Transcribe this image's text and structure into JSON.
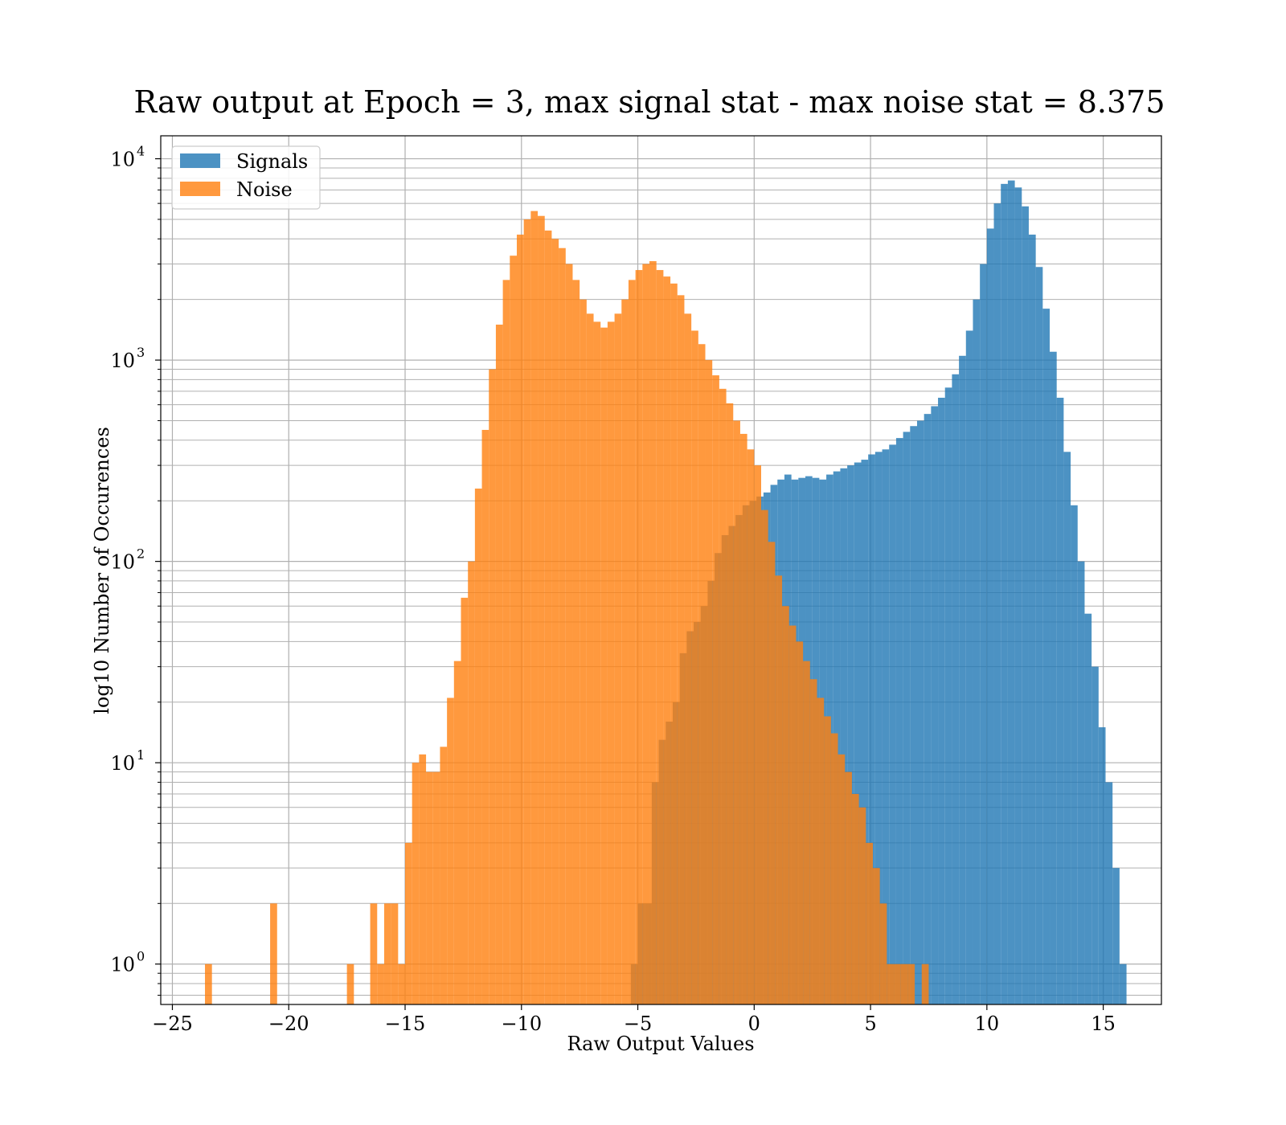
{
  "chart_data": {
    "type": "bar",
    "title": "Raw output at Epoch = 3, max signal stat - max noise stat = 8.375",
    "xlabel": "Raw Output Values",
    "ylabel": "log10 Number of Occurences",
    "yscale": "log",
    "xlim": [
      -25.5,
      17.5
    ],
    "ylim": [
      0.63,
      13000
    ],
    "grid": true,
    "legend_position": "top-left",
    "x_ticks": [
      {
        "value": -25,
        "label": "−25"
      },
      {
        "value": -20,
        "label": "−20"
      },
      {
        "value": -15,
        "label": "−15"
      },
      {
        "value": -10,
        "label": "−10"
      },
      {
        "value": -5,
        "label": "−5"
      },
      {
        "value": 0,
        "label": "0"
      },
      {
        "value": 5,
        "label": "5"
      },
      {
        "value": 10,
        "label": "10"
      },
      {
        "value": 15,
        "label": "15"
      }
    ],
    "y_ticks": [
      {
        "value": 1,
        "base": "10",
        "exp": "0"
      },
      {
        "value": 10,
        "base": "10",
        "exp": "1"
      },
      {
        "value": 100,
        "base": "10",
        "exp": "2"
      },
      {
        "value": 1000,
        "base": "10",
        "exp": "3"
      },
      {
        "value": 10000,
        "base": "10",
        "exp": "4"
      }
    ],
    "series": [
      {
        "name": "Signals",
        "color": "#1f77b4",
        "opacity": 0.8,
        "bins": [
          [
            -5.3,
            -5.0,
            1
          ],
          [
            -5.0,
            -4.7,
            2
          ],
          [
            -4.7,
            -4.4,
            2
          ],
          [
            -4.4,
            -4.1,
            8
          ],
          [
            -4.1,
            -3.8,
            13
          ],
          [
            -3.8,
            -3.5,
            16
          ],
          [
            -3.5,
            -3.2,
            20
          ],
          [
            -3.2,
            -2.9,
            35
          ],
          [
            -2.9,
            -2.6,
            45
          ],
          [
            -2.6,
            -2.3,
            50
          ],
          [
            -2.3,
            -2.0,
            60
          ],
          [
            -2.0,
            -1.7,
            80
          ],
          [
            -1.7,
            -1.4,
            110
          ],
          [
            -1.4,
            -1.1,
            135
          ],
          [
            -1.1,
            -0.8,
            150
          ],
          [
            -0.8,
            -0.5,
            170
          ],
          [
            -0.5,
            -0.2,
            190
          ],
          [
            -0.2,
            0.1,
            200
          ],
          [
            0.1,
            0.4,
            210
          ],
          [
            0.4,
            0.7,
            220
          ],
          [
            0.7,
            1.0,
            240
          ],
          [
            1.0,
            1.3,
            255
          ],
          [
            1.3,
            1.6,
            270
          ],
          [
            1.6,
            1.9,
            255
          ],
          [
            1.9,
            2.2,
            260
          ],
          [
            2.2,
            2.5,
            265
          ],
          [
            2.5,
            2.8,
            260
          ],
          [
            2.8,
            3.1,
            255
          ],
          [
            3.1,
            3.4,
            270
          ],
          [
            3.4,
            3.7,
            280
          ],
          [
            3.7,
            4.0,
            290
          ],
          [
            4.0,
            4.3,
            300
          ],
          [
            4.3,
            4.6,
            310
          ],
          [
            4.6,
            4.9,
            320
          ],
          [
            4.9,
            5.2,
            340
          ],
          [
            5.2,
            5.5,
            350
          ],
          [
            5.5,
            5.8,
            360
          ],
          [
            5.8,
            6.1,
            380
          ],
          [
            6.1,
            6.4,
            410
          ],
          [
            6.4,
            6.7,
            440
          ],
          [
            6.7,
            7.0,
            470
          ],
          [
            7.0,
            7.3,
            500
          ],
          [
            7.3,
            7.6,
            540
          ],
          [
            7.6,
            7.9,
            590
          ],
          [
            7.9,
            8.2,
            650
          ],
          [
            8.2,
            8.5,
            730
          ],
          [
            8.5,
            8.8,
            850
          ],
          [
            8.8,
            9.1,
            1050
          ],
          [
            9.1,
            9.4,
            1400
          ],
          [
            9.4,
            9.7,
            2000
          ],
          [
            9.7,
            10.0,
            3000
          ],
          [
            10.0,
            10.3,
            4500
          ],
          [
            10.3,
            10.6,
            6000
          ],
          [
            10.6,
            10.9,
            7500
          ],
          [
            10.9,
            11.2,
            7800
          ],
          [
            11.2,
            11.5,
            7200
          ],
          [
            11.5,
            11.8,
            5800
          ],
          [
            11.8,
            12.1,
            4200
          ],
          [
            12.1,
            12.4,
            2900
          ],
          [
            12.4,
            12.7,
            1800
          ],
          [
            12.7,
            13.0,
            1100
          ],
          [
            13.0,
            13.3,
            650
          ],
          [
            13.3,
            13.6,
            350
          ],
          [
            13.6,
            13.9,
            190
          ],
          [
            13.9,
            14.2,
            100
          ],
          [
            14.2,
            14.5,
            55
          ],
          [
            14.5,
            14.8,
            30
          ],
          [
            14.8,
            15.1,
            15
          ],
          [
            15.1,
            15.4,
            8
          ],
          [
            15.4,
            15.7,
            3
          ],
          [
            15.7,
            16.0,
            1
          ]
        ]
      },
      {
        "name": "Noise",
        "color": "#ff7f0e",
        "opacity": 0.8,
        "bins": [
          [
            -23.6,
            -23.3,
            1
          ],
          [
            -20.8,
            -20.5,
            2
          ],
          [
            -17.5,
            -17.2,
            1
          ],
          [
            -16.5,
            -16.2,
            2
          ],
          [
            -16.2,
            -15.9,
            1
          ],
          [
            -15.9,
            -15.6,
            2
          ],
          [
            -15.6,
            -15.3,
            2
          ],
          [
            -15.3,
            -15.0,
            1
          ],
          [
            -15.0,
            -14.7,
            4
          ],
          [
            -14.7,
            -14.4,
            10
          ],
          [
            -14.4,
            -14.1,
            11
          ],
          [
            -14.1,
            -13.8,
            9
          ],
          [
            -13.8,
            -13.5,
            9
          ],
          [
            -13.5,
            -13.2,
            12
          ],
          [
            -13.2,
            -12.9,
            21
          ],
          [
            -12.9,
            -12.6,
            32
          ],
          [
            -12.6,
            -12.3,
            66
          ],
          [
            -12.3,
            -12.0,
            100
          ],
          [
            -12.0,
            -11.7,
            230
          ],
          [
            -11.7,
            -11.4,
            450
          ],
          [
            -11.4,
            -11.1,
            900
          ],
          [
            -11.1,
            -10.8,
            1500
          ],
          [
            -10.8,
            -10.5,
            2500
          ],
          [
            -10.5,
            -10.2,
            3300
          ],
          [
            -10.2,
            -9.9,
            4200
          ],
          [
            -9.9,
            -9.6,
            5000
          ],
          [
            -9.6,
            -9.3,
            5500
          ],
          [
            -9.3,
            -9.0,
            5200
          ],
          [
            -9.0,
            -8.7,
            4400
          ],
          [
            -8.7,
            -8.4,
            4000
          ],
          [
            -8.4,
            -8.1,
            3600
          ],
          [
            -8.1,
            -7.8,
            3000
          ],
          [
            -7.8,
            -7.5,
            2500
          ],
          [
            -7.5,
            -7.2,
            2000
          ],
          [
            -7.2,
            -6.9,
            1700
          ],
          [
            -6.9,
            -6.6,
            1550
          ],
          [
            -6.6,
            -6.3,
            1450
          ],
          [
            -6.3,
            -6.0,
            1550
          ],
          [
            -6.0,
            -5.7,
            1700
          ],
          [
            -5.7,
            -5.4,
            2000
          ],
          [
            -5.4,
            -5.1,
            2500
          ],
          [
            -5.1,
            -4.8,
            2800
          ],
          [
            -4.8,
            -4.5,
            3000
          ],
          [
            -4.5,
            -4.2,
            3100
          ],
          [
            -4.2,
            -3.9,
            2800
          ],
          [
            -3.9,
            -3.6,
            2600
          ],
          [
            -3.6,
            -3.3,
            2400
          ],
          [
            -3.3,
            -3.0,
            2100
          ],
          [
            -3.0,
            -2.7,
            1700
          ],
          [
            -2.7,
            -2.4,
            1400
          ],
          [
            -2.4,
            -2.1,
            1200
          ],
          [
            -2.1,
            -1.8,
            1000
          ],
          [
            -1.8,
            -1.5,
            840
          ],
          [
            -1.5,
            -1.2,
            720
          ],
          [
            -1.2,
            -0.9,
            610
          ],
          [
            -0.9,
            -0.6,
            500
          ],
          [
            -0.6,
            -0.3,
            430
          ],
          [
            -0.3,
            0.0,
            360
          ],
          [
            0.0,
            0.3,
            300
          ],
          [
            0.3,
            0.6,
            180
          ],
          [
            0.6,
            0.9,
            125
          ],
          [
            0.9,
            1.2,
            85
          ],
          [
            1.2,
            1.5,
            60
          ],
          [
            1.5,
            1.8,
            48
          ],
          [
            1.8,
            2.1,
            40
          ],
          [
            2.1,
            2.4,
            32
          ],
          [
            2.4,
            2.7,
            26
          ],
          [
            2.7,
            3.0,
            21
          ],
          [
            3.0,
            3.3,
            17
          ],
          [
            3.3,
            3.6,
            14
          ],
          [
            3.6,
            3.9,
            11
          ],
          [
            3.9,
            4.2,
            9
          ],
          [
            4.2,
            4.5,
            7
          ],
          [
            4.5,
            4.8,
            6
          ],
          [
            4.8,
            5.1,
            4
          ],
          [
            5.1,
            5.4,
            3
          ],
          [
            5.4,
            5.7,
            2
          ],
          [
            5.7,
            6.0,
            1
          ],
          [
            6.0,
            6.3,
            1
          ],
          [
            6.3,
            6.6,
            1
          ],
          [
            6.6,
            6.9,
            1
          ],
          [
            7.2,
            7.5,
            1
          ]
        ]
      }
    ]
  }
}
